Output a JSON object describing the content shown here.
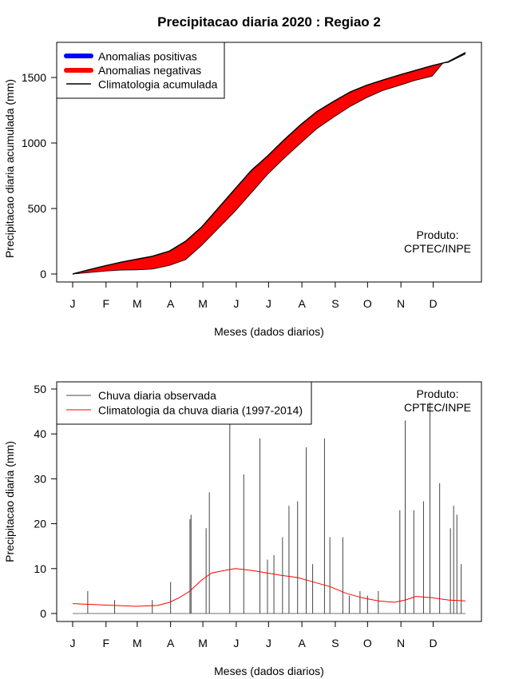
{
  "title": "Precipitacao diaria 2020 : Regiao 2",
  "colors": {
    "positive": "#0000ff",
    "negative": "#ff0000",
    "climatology_line": "#000000",
    "observed_line": "#444444",
    "climatology_daily": "#ff0000"
  },
  "month_labels": [
    "J",
    "F",
    "M",
    "A",
    "M",
    "J",
    "J",
    "A",
    "S",
    "O",
    "N",
    "D"
  ],
  "chart_data": [
    {
      "type": "area",
      "title": "Precipitacao diaria 2020 : Regiao 2",
      "xlabel": "Meses (dados diarios)",
      "ylabel": "Precipitacao diaria acumulada (mm)",
      "ylim": [
        0,
        1700
      ],
      "yticks": [
        0,
        500,
        1000,
        1500
      ],
      "xlim_days": [
        1,
        366
      ],
      "legend": {
        "position": "top-left",
        "entries": [
          "Anomalias positivas",
          "Anomalias negativas",
          "Climatologia acumulada"
        ]
      },
      "credit_lines": [
        "Produto:",
        "CPTEC/INPE"
      ],
      "climatology_cumulative": {
        "days": [
          1,
          15,
          31,
          46,
          60,
          75,
          91,
          106,
          121,
          136,
          152,
          167,
          182,
          197,
          213,
          228,
          244,
          259,
          274,
          289,
          305,
          320,
          335,
          350,
          366
        ],
        "values": [
          0,
          30,
          62,
          90,
          112,
          135,
          175,
          250,
          360,
          500,
          650,
          790,
          900,
          1020,
          1140,
          1240,
          1320,
          1390,
          1440,
          1480,
          1520,
          1555,
          1590,
          1620,
          1690
        ]
      },
      "observed_cumulative": {
        "days": [
          1,
          15,
          31,
          46,
          60,
          75,
          91,
          106,
          121,
          136,
          152,
          167,
          182,
          197,
          213,
          228,
          244,
          259,
          274,
          289,
          305,
          320,
          335,
          345,
          350,
          366
        ],
        "values": [
          0,
          10,
          22,
          30,
          32,
          38,
          65,
          110,
          220,
          345,
          480,
          620,
          760,
          880,
          1000,
          1110,
          1200,
          1280,
          1345,
          1400,
          1440,
          1480,
          1510,
          1610,
          1615,
          1680
        ]
      }
    },
    {
      "type": "line",
      "xlabel": "Meses (dados diarios)",
      "ylabel": "Precipitacao diaria (mm)",
      "ylim": [
        0,
        50
      ],
      "yticks": [
        0,
        10,
        20,
        30,
        40,
        50
      ],
      "xlim_days": [
        1,
        366
      ],
      "legend": {
        "position": "top-left",
        "entries": [
          "Chuva diaria observada",
          "Climatologia da chuva diaria (1997-2014)"
        ]
      },
      "credit_lines": [
        "Produto:",
        "CPTEC/INPE"
      ],
      "observed_daily_peaks": {
        "days": [
          15,
          40,
          75,
          92,
          110,
          111,
          125,
          128,
          147,
          160,
          175,
          182,
          188,
          196,
          202,
          210,
          218,
          224,
          235,
          240,
          252,
          258,
          268,
          275,
          285,
          305,
          310,
          318,
          327,
          333,
          342,
          352,
          355,
          358,
          362
        ],
        "values": [
          5,
          3,
          3,
          7,
          21,
          22,
          19,
          27,
          43,
          31,
          39,
          12,
          13,
          17,
          24,
          25,
          37,
          11,
          39,
          17,
          17,
          4,
          5,
          4,
          5,
          23,
          43,
          23,
          25,
          47,
          29,
          19,
          24,
          22,
          11
        ]
      },
      "climatology_daily": {
        "days": [
          1,
          20,
          40,
          60,
          80,
          91,
          100,
          110,
          121,
          130,
          140,
          152,
          160,
          170,
          182,
          195,
          210,
          225,
          240,
          255,
          270,
          285,
          300,
          310,
          320,
          335,
          350,
          366
        ],
        "values": [
          2.2,
          2.0,
          1.8,
          1.6,
          1.8,
          2.5,
          3.5,
          5.0,
          7.5,
          9.0,
          9.5,
          10.0,
          9.8,
          9.5,
          9.0,
          8.5,
          8.0,
          7.0,
          6.0,
          4.5,
          3.5,
          2.8,
          2.5,
          3.0,
          3.8,
          3.5,
          3.0,
          2.8
        ]
      }
    }
  ]
}
